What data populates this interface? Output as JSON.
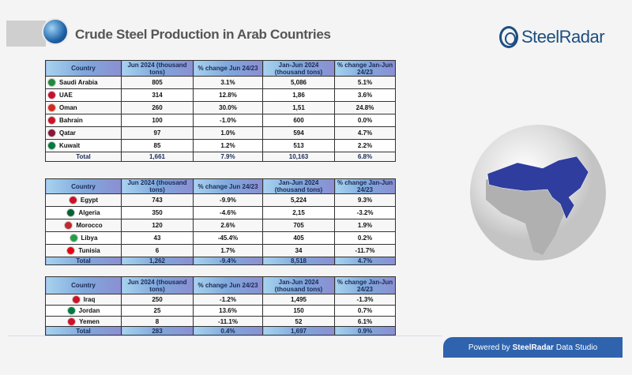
{
  "header": {
    "title": "Crude Steel Production in Arab Countries",
    "logo": "SteelRadar"
  },
  "columns": [
    "Country",
    "Jun 2024 (thousand tons)",
    "% change Jun 24/23",
    "Jan-Jun 2024 (thousand tons)",
    "% change Jan-Jun 24/23"
  ],
  "tables": [
    {
      "rows": [
        [
          "Saudi Arabia",
          "805",
          "3.1%",
          "5,086",
          "5.1%"
        ],
        [
          "UAE",
          "314",
          "12.8%",
          "1,86",
          "3.6%"
        ],
        [
          "Oman",
          "260",
          "30.0%",
          "1,51",
          "24.8%"
        ],
        [
          "Bahrain",
          "100",
          "-1.0%",
          "600",
          "0.0%"
        ],
        [
          "Qatar",
          "97",
          "1.0%",
          "594",
          "4.7%"
        ],
        [
          "Kuwait",
          "85",
          "1.2%",
          "513",
          "2.2%"
        ]
      ],
      "total": [
        "Total",
        "1,661",
        "7.9%",
        "10,163",
        "6.8%"
      ]
    },
    {
      "rows": [
        [
          "Egypt",
          "743",
          "-9.9%",
          "5,224",
          "9.3%"
        ],
        [
          "Algeria",
          "350",
          "-4.6%",
          "2,15",
          "-3.2%"
        ],
        [
          "Morocco",
          "120",
          "2.6%",
          "705",
          "1.9%"
        ],
        [
          "Libya",
          "43",
          "-45.4%",
          "405",
          "0.2%"
        ],
        [
          "Tunisia",
          "6",
          "1.7%",
          "34",
          "-11.7%"
        ]
      ],
      "total": [
        "Total",
        "1,262",
        "-9.4%",
        "8,518",
        "4.7%"
      ]
    },
    {
      "rows": [
        [
          "Iraq",
          "250",
          "-1.2%",
          "1,495",
          "-1.3%"
        ],
        [
          "Jordan",
          "25",
          "13.6%",
          "150",
          "0.7%"
        ],
        [
          "Yemen",
          "8",
          "-11.1%",
          "52",
          "6.1%"
        ]
      ],
      "total": [
        "Total",
        "283",
        "0.4%",
        "1,697",
        "0.9%"
      ]
    }
  ],
  "flag_colors": {
    "Saudi Arabia": "#1e8a3a",
    "UAE": "#c8102e",
    "Oman": "#d52b1e",
    "Bahrain": "#ce1126",
    "Qatar": "#8a1538",
    "Kuwait": "#007a3d",
    "Egypt": "#ce1126",
    "Algeria": "#006233",
    "Morocco": "#c1272d",
    "Libya": "#239e46",
    "Tunisia": "#e70013",
    "Iraq": "#ce1126",
    "Jordan": "#007a3d",
    "Yemen": "#ce1126"
  },
  "map": {
    "highlight_color": "#2f3d9e"
  },
  "footer": {
    "prefix": "Powered by",
    "brand": "SteelRadar",
    "suffix": "Data Studio"
  }
}
